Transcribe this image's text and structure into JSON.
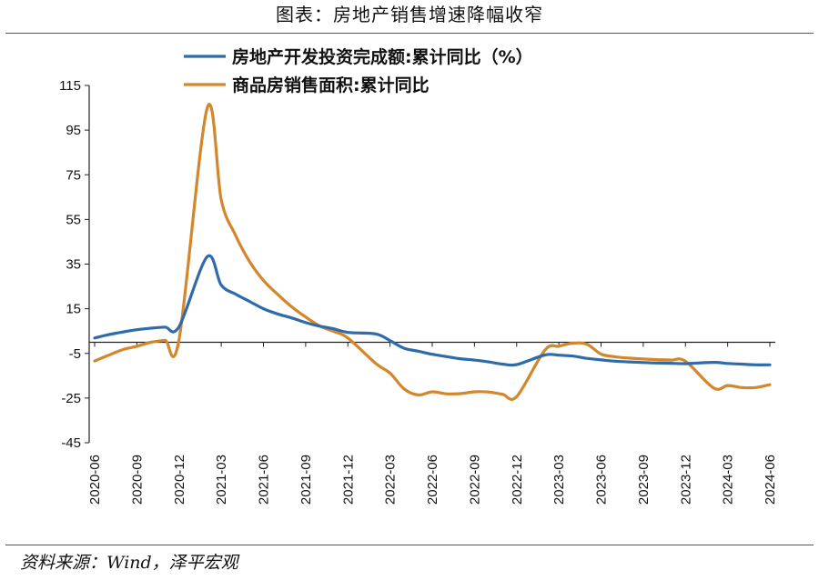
{
  "page": {
    "caption": "图表：房地产销售增速降幅收窄",
    "source": "资料来源：Wind，泽平宏观"
  },
  "chart_data": {
    "type": "line",
    "title": "",
    "xlabel": "",
    "ylabel": "",
    "ylim": [
      -45,
      115
    ],
    "yticks": [
      115,
      95,
      75,
      55,
      35,
      15,
      -5,
      -25,
      -45
    ],
    "xticks": [
      "2020-06",
      "2020-09",
      "2020-12",
      "2021-03",
      "2021-06",
      "2021-09",
      "2021-12",
      "2022-03",
      "2022-06",
      "2022-09",
      "2022-12",
      "2023-03",
      "2023-06",
      "2023-09",
      "2023-12",
      "2024-03",
      "2024-06"
    ],
    "grid": false,
    "legend_position": "top",
    "x": [
      "2020-06",
      "2020-07",
      "2020-08",
      "2020-09",
      "2020-10",
      "2020-11",
      "2020-12",
      "2021-02",
      "2021-03",
      "2021-04",
      "2021-05",
      "2021-06",
      "2021-07",
      "2021-08",
      "2021-09",
      "2021-10",
      "2021-11",
      "2021-12",
      "2022-02",
      "2022-03",
      "2022-04",
      "2022-05",
      "2022-06",
      "2022-07",
      "2022-08",
      "2022-09",
      "2022-10",
      "2022-11",
      "2022-12",
      "2023-02",
      "2023-03",
      "2023-04",
      "2023-05",
      "2023-06",
      "2023-07",
      "2023-08",
      "2023-09",
      "2023-10",
      "2023-11",
      "2023-12",
      "2024-02",
      "2024-03",
      "2024-04",
      "2024-05",
      "2024-06"
    ],
    "series": [
      {
        "name": "房地产开发投资完成额:累计同比（%）",
        "color": "#2E6BA8",
        "values": [
          1.9,
          3.4,
          4.6,
          5.6,
          6.3,
          6.8,
          7.0,
          38.3,
          25.6,
          21.6,
          18.3,
          15.0,
          12.7,
          10.9,
          8.8,
          7.2,
          6.0,
          4.4,
          3.7,
          0.7,
          -2.7,
          -4.0,
          -5.4,
          -6.4,
          -7.4,
          -8.0,
          -8.8,
          -9.8,
          -10.0,
          -5.7,
          -5.8,
          -6.2,
          -7.2,
          -7.9,
          -8.5,
          -8.8,
          -9.1,
          -9.3,
          -9.4,
          -9.6,
          -9.0,
          -9.5,
          -9.8,
          -10.1,
          -10.1
        ]
      },
      {
        "name": "商品房销售面积:累计同比",
        "color": "#D4862A",
        "values": [
          -8.4,
          -5.8,
          -3.3,
          -1.8,
          0,
          0.9,
          1.3,
          104.9,
          63.8,
          48.1,
          36.3,
          27.7,
          21.5,
          15.9,
          11.3,
          7.3,
          4.8,
          1.9,
          -9.6,
          -13.8,
          -20.9,
          -23.6,
          -22.2,
          -23.1,
          -23.0,
          -22.2,
          -22.3,
          -23.3,
          -24.3,
          -3.6,
          -1.8,
          -0.4,
          -0.9,
          -5.3,
          -6.5,
          -7.1,
          -7.5,
          -7.8,
          -8.0,
          -8.5,
          -20.5,
          -19.4,
          -20.3,
          -20.3,
          -19.0
        ]
      }
    ]
  }
}
